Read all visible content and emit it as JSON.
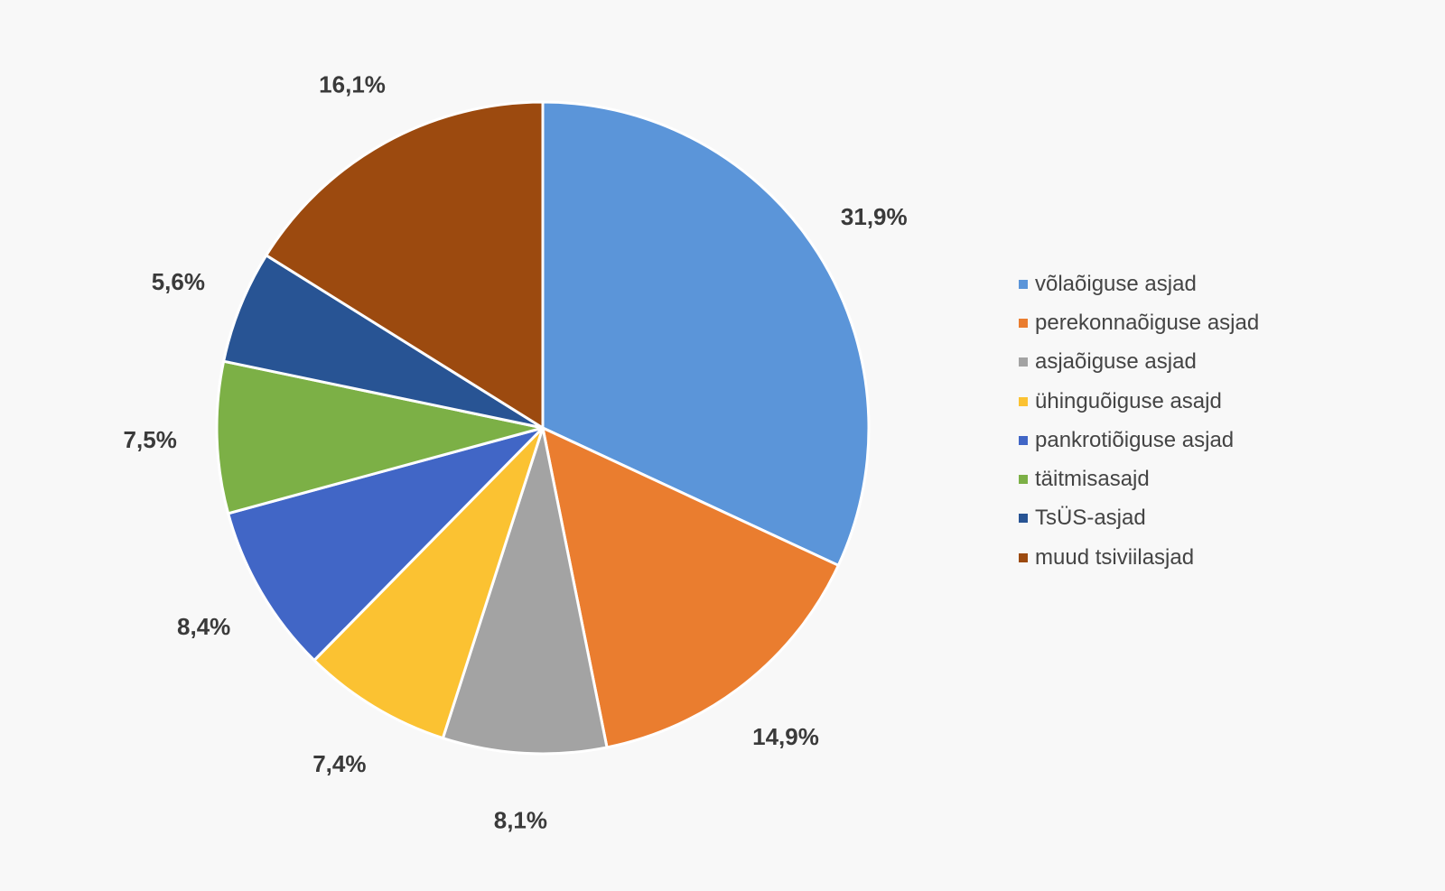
{
  "chart_data": {
    "type": "pie",
    "categories": [
      "võlaõiguse asjad",
      "perekonnaõiguse asjad",
      "asjaõiguse asjad",
      "ühinguõiguse asajd",
      "pankrotiõiguse asjad",
      "täitmisasajd",
      "TsÜS-asjad",
      "muud tsiviilasjad"
    ],
    "values": [
      31.9,
      14.9,
      8.1,
      7.4,
      8.4,
      7.5,
      5.6,
      16.1
    ],
    "value_labels": [
      "31,9%",
      "14,9%",
      "8,1%",
      "7,4%",
      "8,4%",
      "7,5%",
      "5,6%",
      "16,1%"
    ],
    "colors": [
      "#5b95d9",
      "#ea7d2f",
      "#a3a3a3",
      "#fbc232",
      "#4166c6",
      "#7cb046",
      "#285494",
      "#9c4a0f"
    ],
    "start_angle": "12 o'clock",
    "direction": "clockwise",
    "legend_position": "right",
    "title": ""
  }
}
